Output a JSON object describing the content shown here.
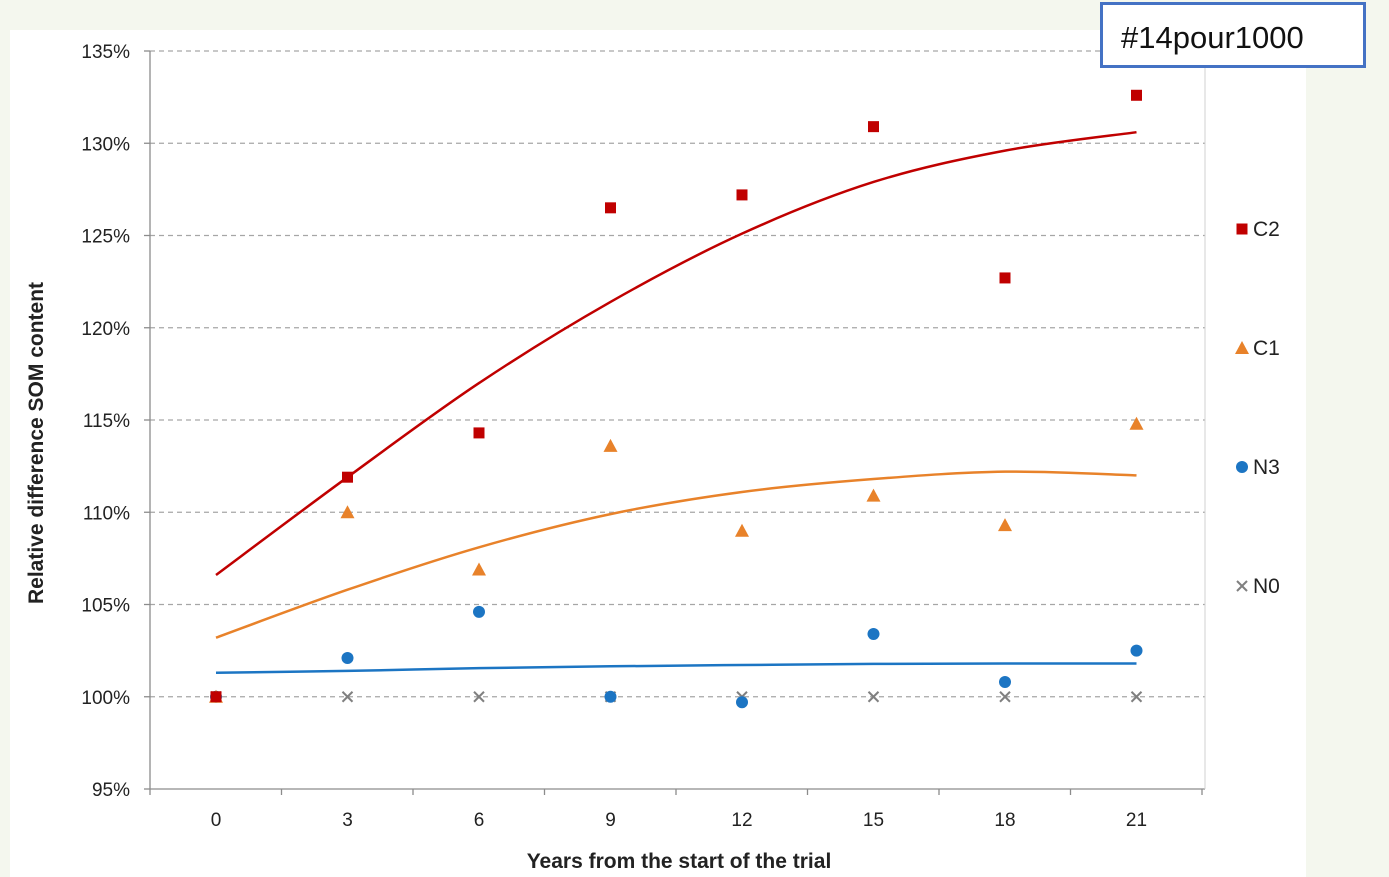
{
  "tag": "#14pour1000",
  "colors": {
    "C2": "#c00000",
    "C1": "#e8822a",
    "N3": "#1c75c3",
    "N0": "#808080",
    "grid": "#a6a6a6",
    "axis": "#8c8c8c"
  },
  "chart_data": {
    "type": "scatter",
    "title": "",
    "xlabel": "Years from the start of the trial",
    "ylabel": "Relative difference SOM content",
    "x": [
      0,
      3,
      6,
      9,
      12,
      15,
      18,
      21
    ],
    "x_ticks": [
      "0",
      "3",
      "6",
      "9",
      "12",
      "15",
      "18",
      "21"
    ],
    "y_ticks": [
      "95%",
      "100%",
      "105%",
      "110%",
      "115%",
      "120%",
      "125%",
      "130%",
      "135%"
    ],
    "ylim": [
      95,
      135
    ],
    "grid": "horizontal dashed",
    "legend_position": "right",
    "series": [
      {
        "name": "C2",
        "marker": "square",
        "values": [
          100,
          111.9,
          114.3,
          126.5,
          127.2,
          130.9,
          122.7,
          132.6
        ],
        "trend": [
          106.6,
          111.9,
          117.0,
          121.4,
          125.1,
          127.9,
          129.6,
          130.6
        ]
      },
      {
        "name": "C1",
        "marker": "triangle",
        "values": [
          100,
          110.0,
          106.9,
          113.6,
          109.0,
          110.9,
          109.3,
          114.8
        ],
        "trend": [
          103.2,
          105.8,
          108.1,
          109.9,
          111.1,
          111.8,
          112.2,
          112.0
        ]
      },
      {
        "name": "N3",
        "marker": "circle",
        "values": [
          100,
          102.1,
          104.6,
          100,
          99.7,
          103.4,
          100.8,
          102.5
        ],
        "trend": [
          101.3,
          101.4,
          101.55,
          101.65,
          101.72,
          101.78,
          101.8,
          101.8
        ]
      },
      {
        "name": "N0",
        "marker": "x",
        "values": [
          100,
          100,
          100,
          100,
          100,
          100,
          100,
          100
        ]
      }
    ]
  }
}
